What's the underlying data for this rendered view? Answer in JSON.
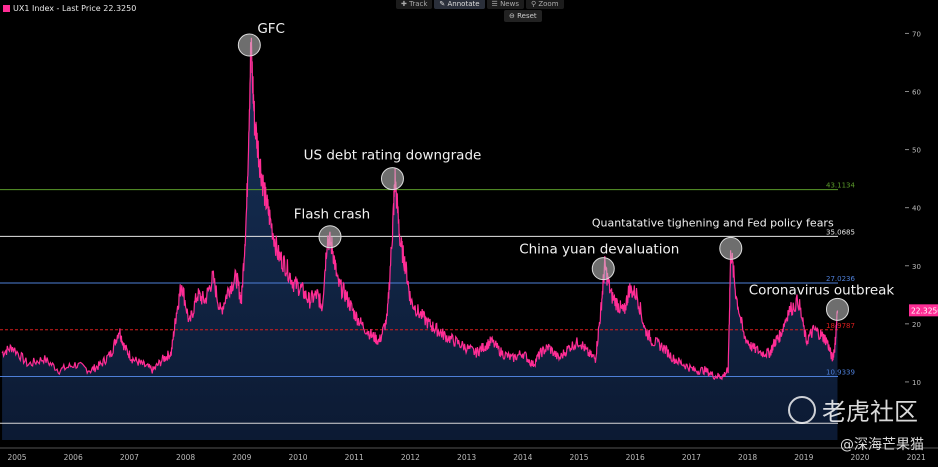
{
  "legend": {
    "label": "UX1 Index - Last Price 22.3250",
    "color": "#ff2d95"
  },
  "toolbar": {
    "items": [
      "Track",
      "Annotate",
      "News",
      "Zoom"
    ],
    "reset": "Reset"
  },
  "watermark": {
    "brand": "老虎社区",
    "handle": "@深海芒果猫"
  },
  "chart_data": {
    "type": "area",
    "title": "UX1 Index - Last Price 22.3250",
    "ylim": [
      0,
      73
    ],
    "y_ticks": [
      10,
      20,
      30,
      40,
      50,
      60,
      70
    ],
    "x_ticks": [
      "2005",
      "2006",
      "2007",
      "2008",
      "2009",
      "2010",
      "2011",
      "2012",
      "2013",
      "2014",
      "2015",
      "2016",
      "2017",
      "2018",
      "2019",
      "2020",
      "2021"
    ],
    "last_price": {
      "value": 22.325,
      "label": "22.3250"
    },
    "reference_lines": [
      {
        "value": 43.1134,
        "label": "43.1134",
        "color": "#5a9a2a"
      },
      {
        "value": 35.0685,
        "label": "35.0685",
        "color": "#e6e6e6"
      },
      {
        "value": 27.0236,
        "label": "27.0236",
        "color": "#4e7fd8"
      },
      {
        "value": 18.9787,
        "label": "18.9787",
        "color": "#d81e1e",
        "dashed": true
      },
      {
        "value": 10.9339,
        "label": "10.9339",
        "color": "#4e7fd8"
      },
      {
        "value": 2.889,
        "label": "",
        "color": "#d8d8d8"
      }
    ],
    "annotations": [
      {
        "x": 2008.85,
        "y": 68,
        "label": "GFC"
      },
      {
        "x": 2010.4,
        "y": 35,
        "label": "Flash crash"
      },
      {
        "x": 2011.6,
        "y": 45,
        "label": "US debt rating downgrade"
      },
      {
        "x": 2015.65,
        "y": 29.5,
        "label": "China yuan devaluation"
      },
      {
        "x": 2018.1,
        "y": 33,
        "label": "Quantatative tighening and Fed policy fears"
      },
      {
        "x": 2020.15,
        "y": 22.5,
        "label": "Coronavirus outbreak"
      }
    ],
    "series": [
      {
        "color": "#ff2d95",
        "x": [
          2004.1,
          2004.3,
          2004.6,
          2004.9,
          2005.2,
          2005.5,
          2005.8,
          2006.0,
          2006.2,
          2006.35,
          2006.45,
          2006.6,
          2006.8,
          2007.0,
          2007.2,
          2007.35,
          2007.45,
          2007.55,
          2007.7,
          2007.85,
          2008.0,
          2008.15,
          2008.3,
          2008.45,
          2008.6,
          2008.7,
          2008.8,
          2008.88,
          2008.95,
          2009.05,
          2009.15,
          2009.25,
          2009.4,
          2009.55,
          2009.7,
          2009.85,
          2010.0,
          2010.15,
          2010.25,
          2010.35,
          2010.45,
          2010.55,
          2010.7,
          2010.85,
          2011.0,
          2011.2,
          2011.35,
          2011.5,
          2011.6,
          2011.65,
          2011.75,
          2011.85,
          2011.95,
          2012.1,
          2012.3,
          2012.45,
          2012.6,
          2012.8,
          2013.0,
          2013.2,
          2013.35,
          2013.5,
          2013.7,
          2013.9,
          2014.1,
          2014.3,
          2014.45,
          2014.6,
          2014.8,
          2015.0,
          2015.2,
          2015.35,
          2015.5,
          2015.6,
          2015.68,
          2015.8,
          2015.95,
          2016.05,
          2016.15,
          2016.3,
          2016.45,
          2016.6,
          2016.8,
          2017.0,
          2017.2,
          2017.4,
          2017.6,
          2017.8,
          2017.95,
          2018.05,
          2018.1,
          2018.2,
          2018.35,
          2018.5,
          2018.7,
          2018.85,
          2018.95,
          2019.05,
          2019.2,
          2019.4,
          2019.55,
          2019.7,
          2019.85,
          2019.95,
          2020.05,
          2020.1,
          2020.15
        ],
        "y": [
          15,
          16,
          13,
          14,
          12,
          13,
          12,
          13,
          15,
          19,
          16,
          14,
          13,
          12,
          14,
          15,
          22,
          27,
          20,
          25,
          24,
          28,
          22,
          26,
          28,
          24,
          40,
          68,
          55,
          48,
          42,
          38,
          32,
          30,
          27,
          26,
          24,
          25,
          23,
          35,
          33,
          27,
          25,
          22,
          20,
          18,
          17,
          21,
          36,
          45,
          34,
          30,
          24,
          22,
          20,
          19,
          18,
          17,
          16,
          15,
          16,
          17,
          15,
          14,
          15,
          13,
          15,
          16,
          14,
          16,
          17,
          15,
          14,
          22,
          30,
          25,
          23,
          22,
          26,
          25,
          19,
          17,
          16,
          14,
          13,
          12,
          12,
          11,
          11,
          12,
          33,
          25,
          18,
          16,
          15,
          15,
          17,
          18,
          22,
          24,
          17,
          19,
          18,
          17,
          14,
          16,
          22.3
        ]
      }
    ]
  }
}
